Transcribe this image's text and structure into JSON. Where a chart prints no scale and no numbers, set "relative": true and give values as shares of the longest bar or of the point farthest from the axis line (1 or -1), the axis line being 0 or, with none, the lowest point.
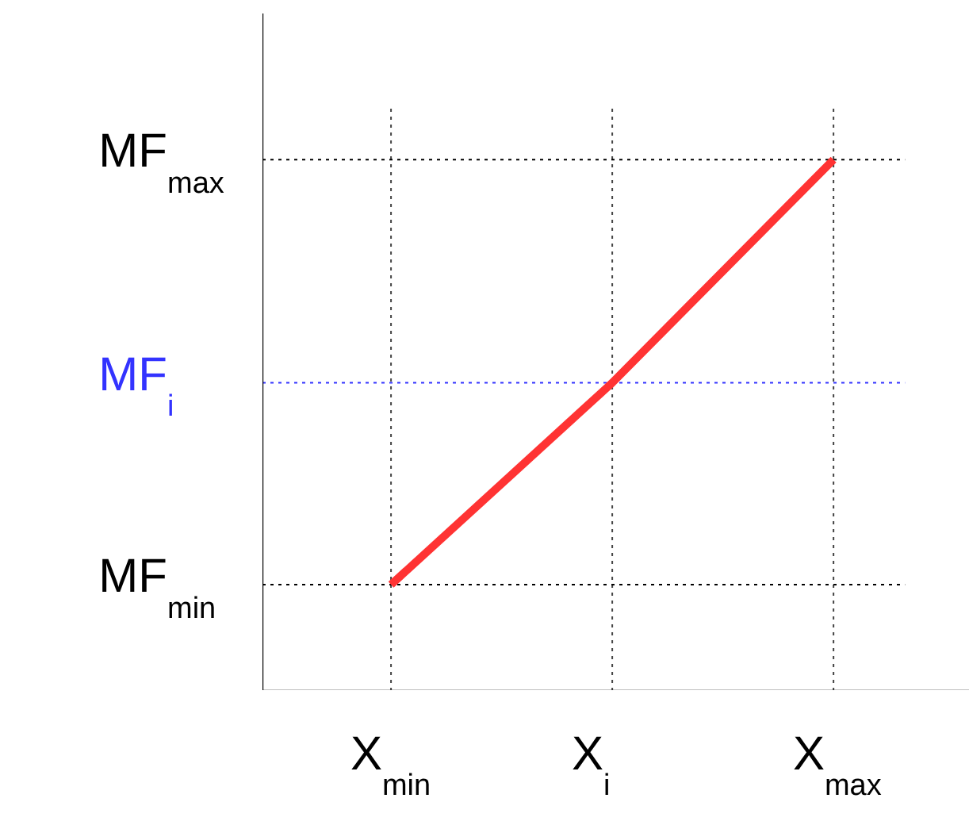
{
  "chart_data": {
    "type": "line",
    "relative": true,
    "categories": [
      "X$_{min}$",
      "X$_{i}$",
      "X$_{max}$"
    ],
    "series": [
      {
        "color": "#ff3333",
        "values": [
          0.2,
          0.58,
          1
        ]
      }
    ],
    "grid": "x",
    "ref_lines": [
      {
        "axis": "y",
        "value": 1,
        "label": "MF$_{max}$",
        "color": "#000000",
        "line_style": "dotted"
      },
      {
        "axis": "y",
        "value": 0.58,
        "label": "MF$_{i}$",
        "color": "#3333ff",
        "line_style": "dotted"
      },
      {
        "axis": "y",
        "value": 0.2,
        "label": "MF$_{min}$",
        "color": "#000000",
        "line_style": "dotted"
      }
    ]
  }
}
